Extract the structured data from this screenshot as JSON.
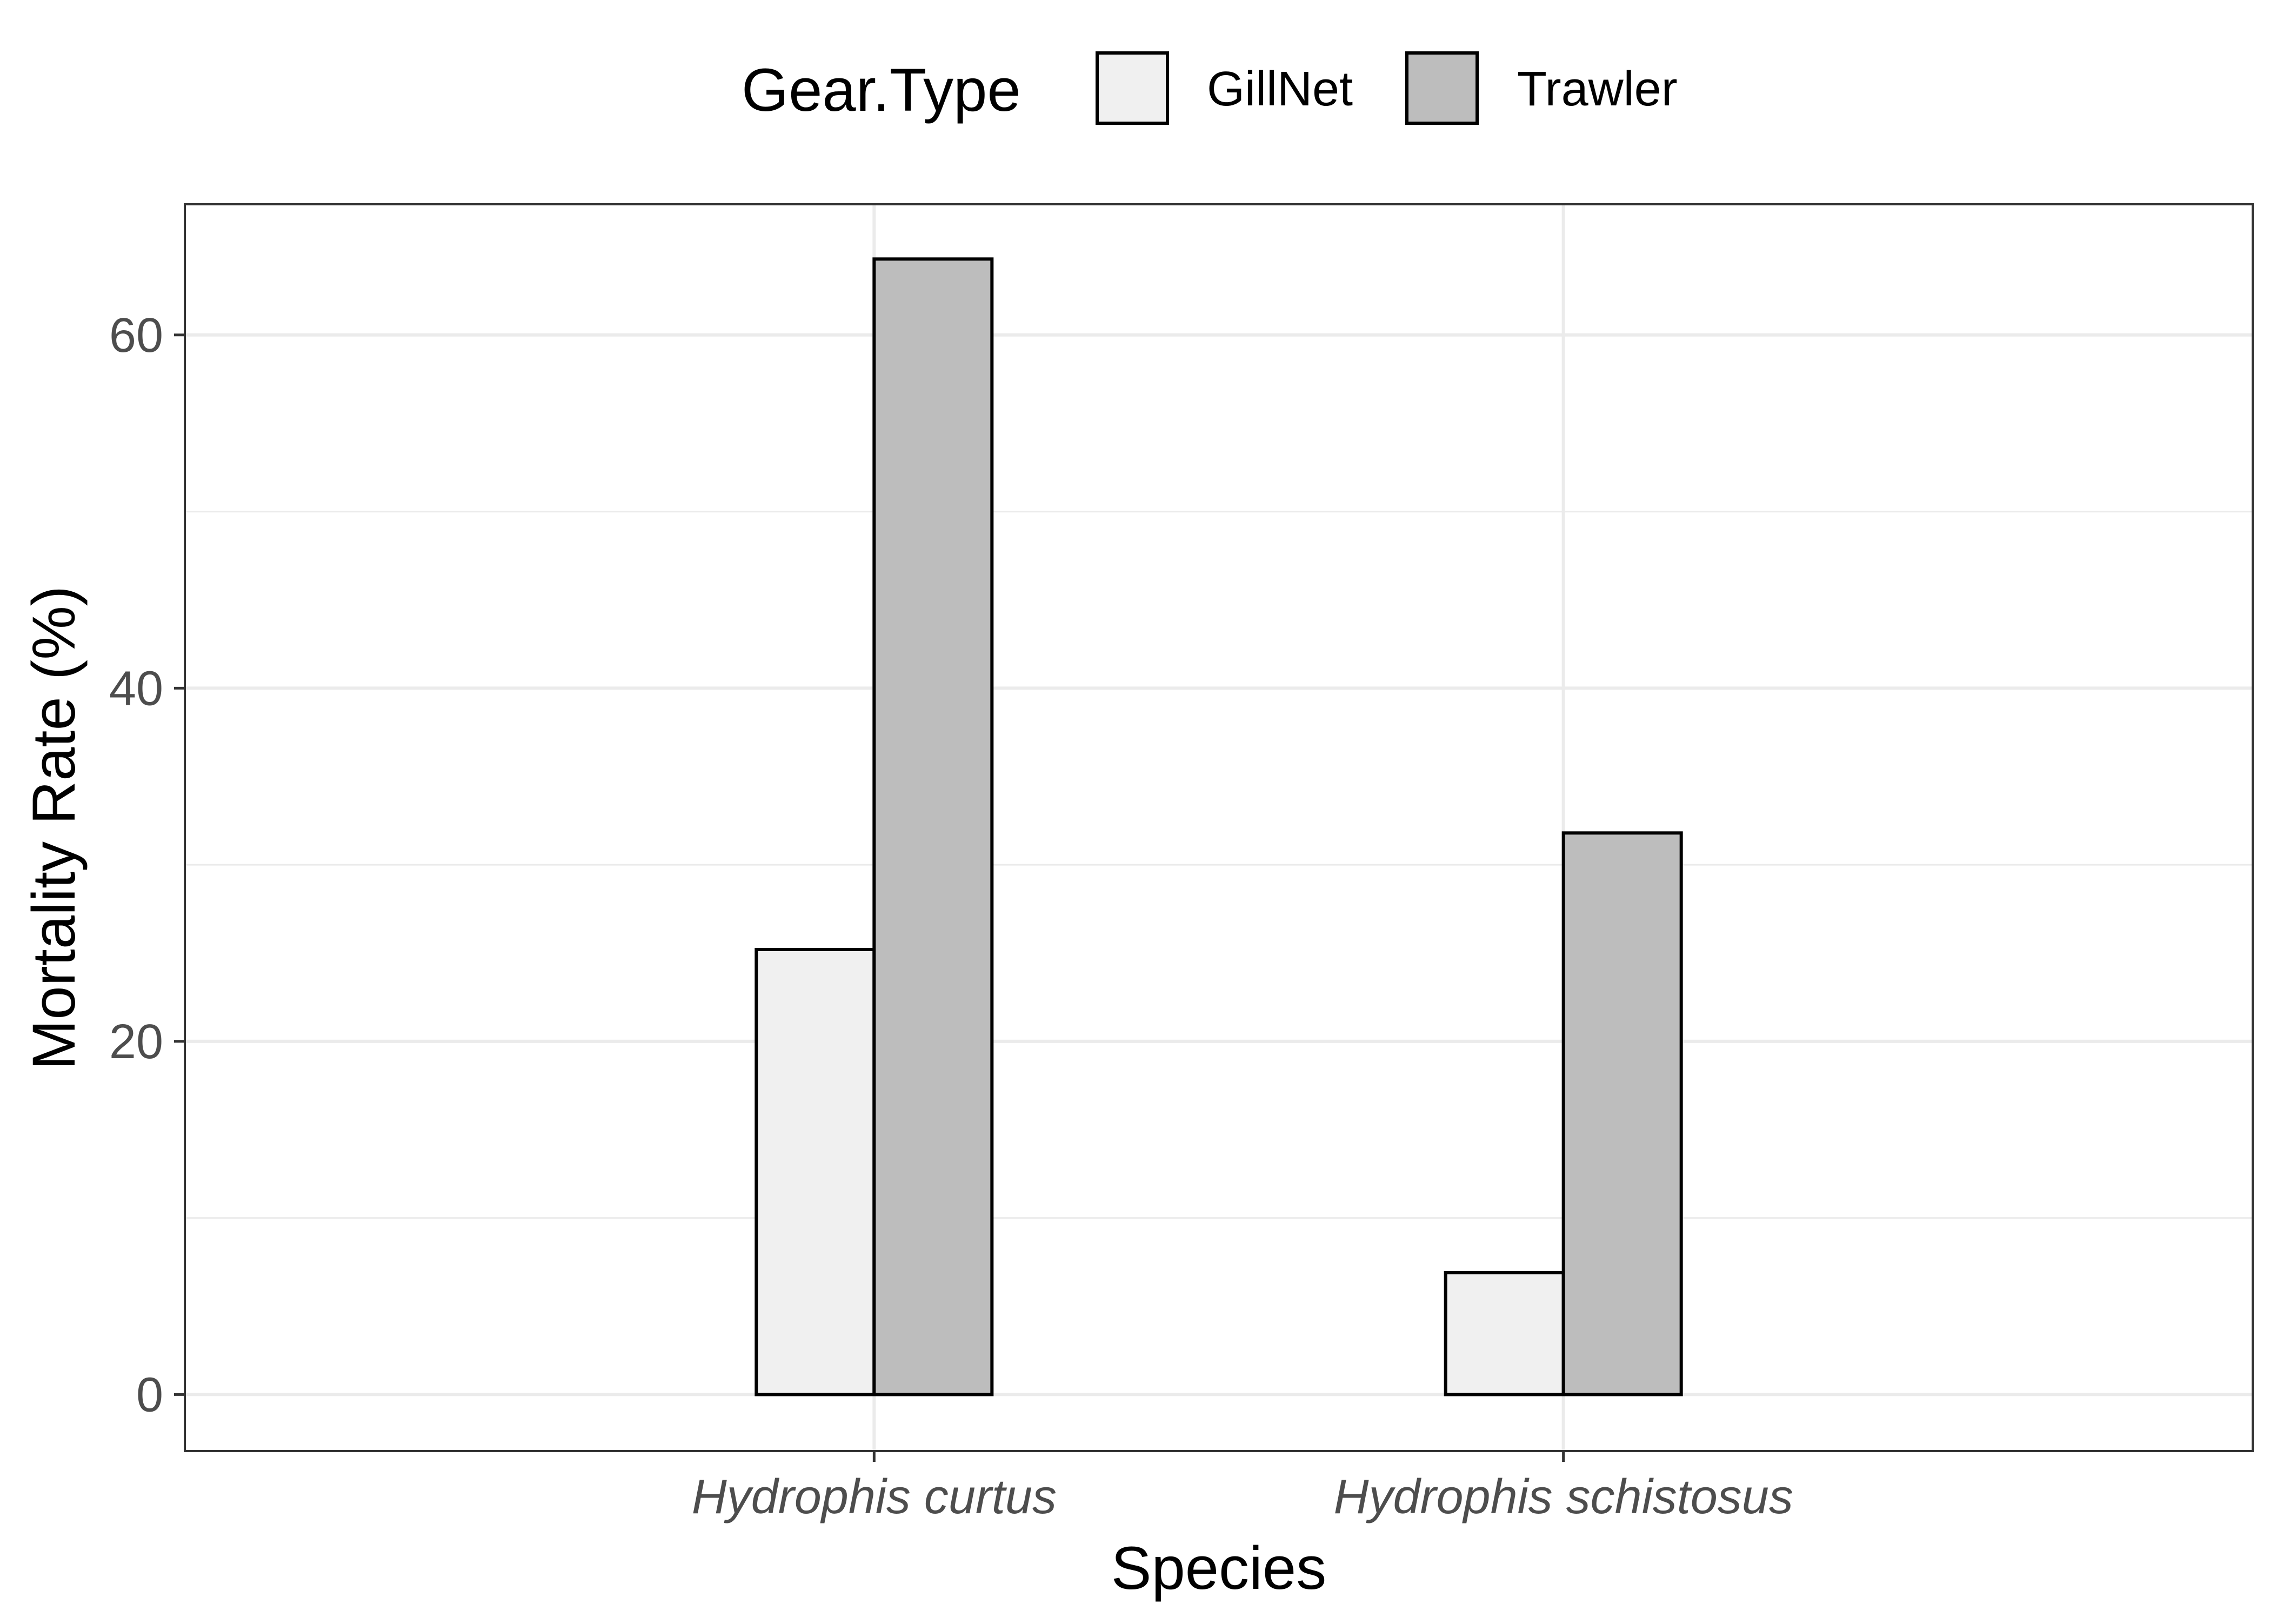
{
  "chart_data": {
    "type": "bar",
    "title": "",
    "xlabel": "Species",
    "ylabel": "Mortality Rate (%)",
    "categories": [
      "Hydrophis curtus",
      "Hydrophis schistosus"
    ],
    "series": [
      {
        "name": "GillNet",
        "values": [
          25.2,
          6.9
        ],
        "color": "#f0f0f0"
      },
      {
        "name": "Trawler",
        "values": [
          64.3,
          31.8
        ],
        "color": "#bdbdbd"
      }
    ],
    "legend": {
      "title": "Gear.Type",
      "position": "top"
    },
    "ylim": [
      -3.2,
      67.4
    ],
    "yticks": [
      0,
      20,
      40,
      60
    ],
    "ytick_labels": [
      "0",
      "20",
      "40",
      "60"
    ],
    "grid": true,
    "colors": {
      "bar_border": "#000000",
      "grid": "#ebebeb",
      "panel_border": "#333333",
      "tick_label": "#4d4d4d",
      "axis_title": "#000000"
    }
  }
}
